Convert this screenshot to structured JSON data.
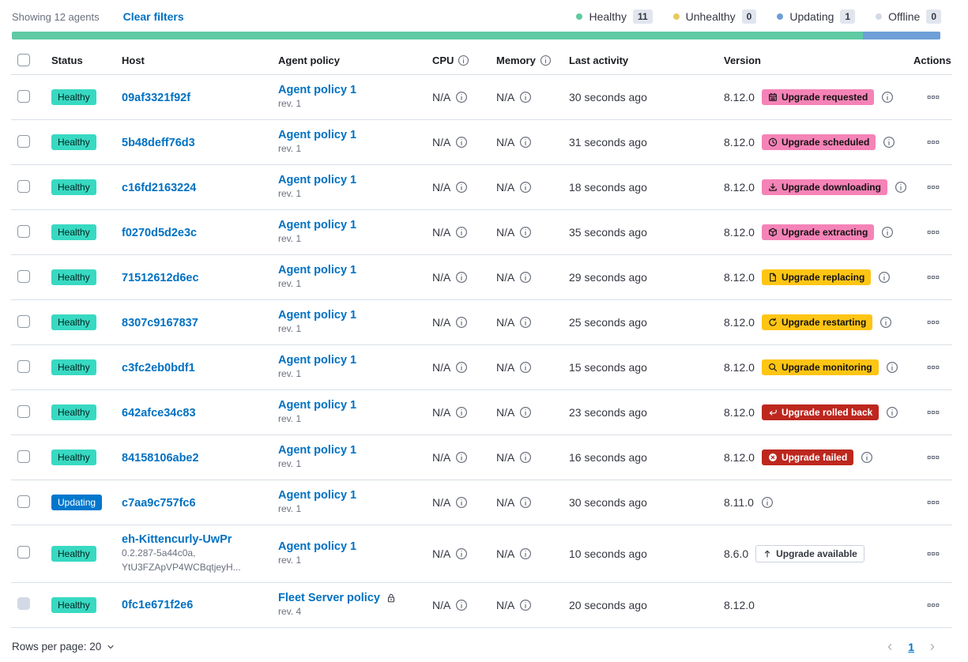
{
  "toolbar": {
    "showing": "Showing 12 agents",
    "clear_filters": "Clear filters",
    "legend": [
      {
        "label": "Healthy",
        "count": "11",
        "color": "#5FCAA3"
      },
      {
        "label": "Unhealthy",
        "count": "0",
        "color": "#E7C95F"
      },
      {
        "label": "Updating",
        "count": "1",
        "color": "#6E9FD7"
      },
      {
        "label": "Offline",
        "count": "0",
        "color": "#D3DAE6"
      }
    ]
  },
  "health_bar": {
    "segments": [
      {
        "status": "healthy",
        "color": "#5FCAA3",
        "percent": 91.67
      },
      {
        "status": "updating",
        "color": "#6E9FD7",
        "percent": 8.33
      }
    ]
  },
  "table": {
    "columns": {
      "status": "Status",
      "host": "Host",
      "policy": "Agent policy",
      "cpu": "CPU",
      "memory": "Memory",
      "last_activity": "Last activity",
      "version": "Version",
      "actions": "Actions"
    },
    "rows": [
      {
        "status": "Healthy",
        "status_style": "healthy",
        "host": "09af3321f92f",
        "policy": "Agent policy 1",
        "policy_rev": "rev. 1",
        "cpu": "N/A",
        "memory": "N/A",
        "last_activity": "30 seconds ago",
        "version": "8.12.0",
        "upgrade": {
          "label": "Upgrade requested",
          "style": "pink",
          "icon": "calendar"
        },
        "badge_info": true
      },
      {
        "status": "Healthy",
        "status_style": "healthy",
        "host": "5b48deff76d3",
        "policy": "Agent policy 1",
        "policy_rev": "rev. 1",
        "cpu": "N/A",
        "memory": "N/A",
        "last_activity": "31 seconds ago",
        "version": "8.12.0",
        "upgrade": {
          "label": "Upgrade scheduled",
          "style": "pink",
          "icon": "clock"
        },
        "badge_info": true
      },
      {
        "status": "Healthy",
        "status_style": "healthy",
        "host": "c16fd2163224",
        "policy": "Agent policy 1",
        "policy_rev": "rev. 1",
        "cpu": "N/A",
        "memory": "N/A",
        "last_activity": "18 seconds ago",
        "version": "8.12.0",
        "upgrade": {
          "label": "Upgrade downloading",
          "style": "pink",
          "icon": "download"
        },
        "badge_info": true
      },
      {
        "status": "Healthy",
        "status_style": "healthy",
        "host": "f0270d5d2e3c",
        "policy": "Agent policy 1",
        "policy_rev": "rev. 1",
        "cpu": "N/A",
        "memory": "N/A",
        "last_activity": "35 seconds ago",
        "version": "8.12.0",
        "upgrade": {
          "label": "Upgrade extracting",
          "style": "pink",
          "icon": "package"
        },
        "badge_info": true
      },
      {
        "status": "Healthy",
        "status_style": "healthy",
        "host": "71512612d6ec",
        "policy": "Agent policy 1",
        "policy_rev": "rev. 1",
        "cpu": "N/A",
        "memory": "N/A",
        "last_activity": "29 seconds ago",
        "version": "8.12.0",
        "upgrade": {
          "label": "Upgrade replacing",
          "style": "yellow",
          "icon": "document"
        },
        "badge_info": true
      },
      {
        "status": "Healthy",
        "status_style": "healthy",
        "host": "8307c9167837",
        "policy": "Agent policy 1",
        "policy_rev": "rev. 1",
        "cpu": "N/A",
        "memory": "N/A",
        "last_activity": "25 seconds ago",
        "version": "8.12.0",
        "upgrade": {
          "label": "Upgrade restarting",
          "style": "yellow",
          "icon": "refresh"
        },
        "badge_info": true
      },
      {
        "status": "Healthy",
        "status_style": "healthy",
        "host": "c3fc2eb0bdf1",
        "policy": "Agent policy 1",
        "policy_rev": "rev. 1",
        "cpu": "N/A",
        "memory": "N/A",
        "last_activity": "15 seconds ago",
        "version": "8.12.0",
        "upgrade": {
          "label": "Upgrade monitoring",
          "style": "yellow",
          "icon": "inspect"
        },
        "badge_info": true
      },
      {
        "status": "Healthy",
        "status_style": "healthy",
        "host": "642afce34c83",
        "policy": "Agent policy 1",
        "policy_rev": "rev. 1",
        "cpu": "N/A",
        "memory": "N/A",
        "last_activity": "23 seconds ago",
        "version": "8.12.0",
        "upgrade": {
          "label": "Upgrade rolled back",
          "style": "red",
          "icon": "return"
        },
        "badge_info": true
      },
      {
        "status": "Healthy",
        "status_style": "healthy",
        "host": "84158106abe2",
        "policy": "Agent policy 1",
        "policy_rev": "rev. 1",
        "cpu": "N/A",
        "memory": "N/A",
        "last_activity": "16 seconds ago",
        "version": "8.12.0",
        "upgrade": {
          "label": "Upgrade failed",
          "style": "red",
          "icon": "error"
        },
        "badge_info": true
      },
      {
        "status": "Updating",
        "status_style": "updating",
        "host": "c7aa9c757fc6",
        "policy": "Agent policy 1",
        "policy_rev": "rev. 1",
        "cpu": "N/A",
        "memory": "N/A",
        "last_activity": "30 seconds ago",
        "version": "8.11.0",
        "version_info": true
      },
      {
        "status": "Healthy",
        "status_style": "healthy",
        "host": "eh-Kittencurly-UwPr",
        "host_sub": [
          "0.2.287-5a44c0a,",
          "YtU3FZApVP4WCBqtjeyH..."
        ],
        "policy": "Agent policy 1",
        "policy_rev": "rev. 1",
        "cpu": "N/A",
        "memory": "N/A",
        "last_activity": "10 seconds ago",
        "version": "8.6.0",
        "upgrade": {
          "label": "Upgrade available",
          "style": "hollow",
          "icon": "arrow-up"
        }
      },
      {
        "status": "Healthy",
        "status_style": "healthy",
        "host": "0fc1e671f2e6",
        "policy": "Fleet Server policy",
        "policy_lock": true,
        "policy_rev": "rev. 4",
        "cpu": "N/A",
        "memory": "N/A",
        "last_activity": "20 seconds ago",
        "version": "8.12.0",
        "checkbox_disabled": true
      }
    ]
  },
  "footer": {
    "rows_per_page": "Rows per page: 20",
    "page": "1"
  },
  "palette": {
    "healthy_badge": "#38D9C2",
    "updating_badge": "#0077CC",
    "pink_badge": "#F583B7",
    "yellow_badge": "#FEC514",
    "red_badge": "#BD271E",
    "hollow_badge_border": "#CBD2DC",
    "link_blue": "#0071C2",
    "muted_text": "#69707D",
    "row_border": "#D9E0E8"
  }
}
